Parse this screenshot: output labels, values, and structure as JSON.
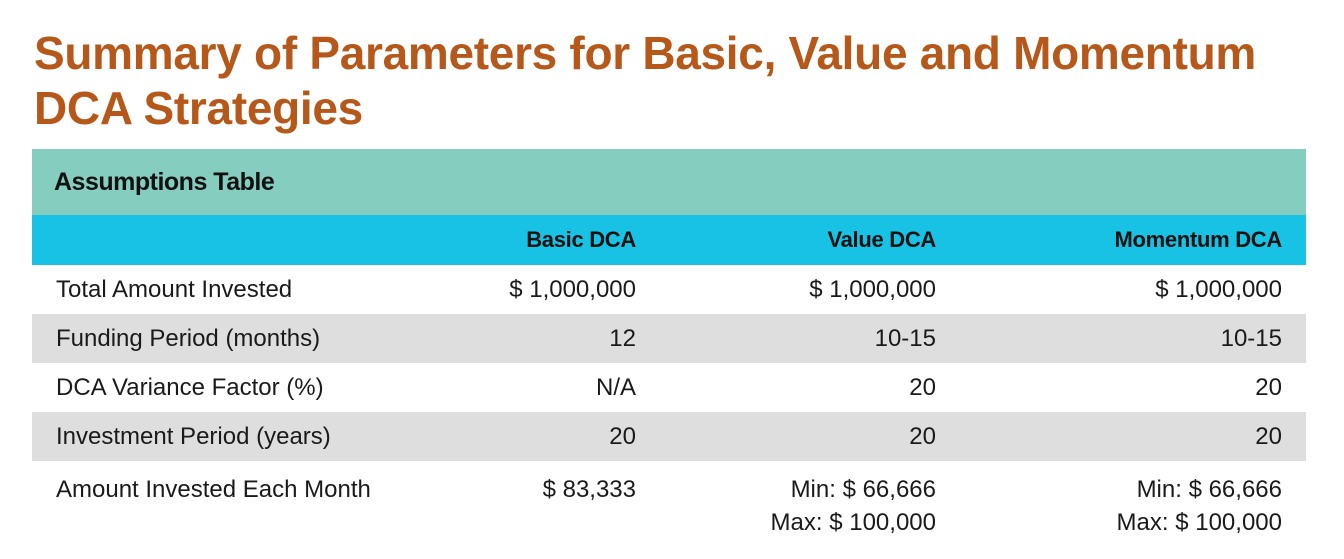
{
  "title": "Summary of Parameters for Basic, Value and Momentum DCA Strategies",
  "table": {
    "caption": "Assumptions Table",
    "columns": [
      "",
      "Basic DCA",
      "Value DCA",
      "Momentum DCA"
    ],
    "rows": [
      {
        "label": "Total Amount Invested",
        "basic": "$ 1,000,000",
        "value": "$ 1,000,000",
        "momentum": "$ 1,000,000"
      },
      {
        "label": "Funding Period (months)",
        "basic": "12",
        "value": "10-15",
        "momentum": "10-15"
      },
      {
        "label": "DCA Variance Factor (%)",
        "basic": "N/A",
        "value": "20",
        "momentum": "20"
      },
      {
        "label": "Investment Period (years)",
        "basic": "20",
        "value": "20",
        "momentum": "20"
      },
      {
        "label": "Amount Invested Each Month",
        "basic": "$ 83,333",
        "value_min": "Min: $ 66,666",
        "value_max": "Max: $ 100,000",
        "momentum_min": "Min: $ 66,666",
        "momentum_max": "Max: $ 100,000"
      }
    ]
  },
  "colors": {
    "title": "#b5581a",
    "caption_bg": "#85cdbe",
    "header_bg": "#18c2e4",
    "shaded_row_bg": "#dedede"
  }
}
